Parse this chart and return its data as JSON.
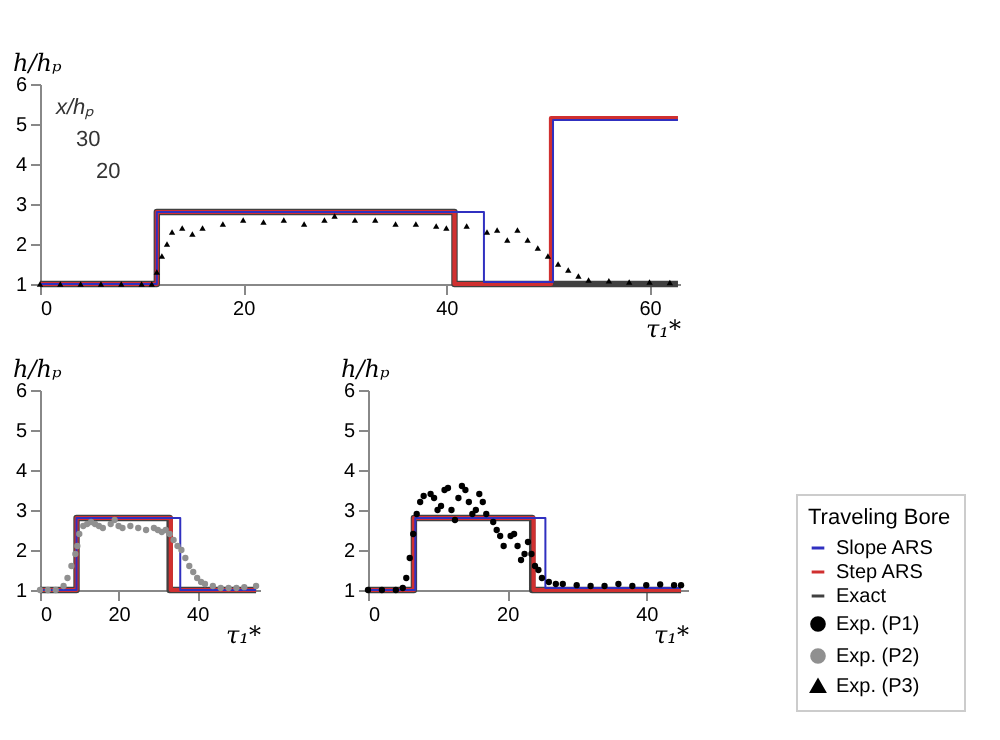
{
  "chart_data": [
    {
      "type": "line",
      "xlabel": "τ₁*",
      "ylabel": "h/hₚ",
      "xlim": [
        0,
        63
      ],
      "xticks": [
        0,
        20,
        40,
        60
      ],
      "ylim": [
        1,
        6
      ],
      "yticks": [
        1,
        2,
        3,
        4,
        5,
        6
      ],
      "grid": false,
      "legend": "right",
      "annotations": [
        "x/hₚ",
        "30",
        "20"
      ],
      "series": [
        {
          "name": "Slope ARS",
          "color": "#3030c0",
          "x": [
            0,
            11.5,
            11.5,
            43.7,
            43.7,
            50.5,
            50.5,
            62.8
          ],
          "values": [
            1,
            1,
            2.8,
            2.8,
            1.05,
            1.05,
            5.1,
            5.1
          ]
        },
        {
          "name": "Step ARS",
          "color": "#d03030",
          "x": [
            0,
            11.5,
            11.5,
            40.8,
            40.8,
            50.3,
            50.3,
            62.8
          ],
          "values": [
            1,
            1,
            2.8,
            2.8,
            1,
            1,
            5.15,
            5.15
          ]
        },
        {
          "name": "Exact",
          "color": "#404040",
          "x": [
            0,
            11.5,
            11.5,
            40.8,
            40.8,
            62.8
          ],
          "values": [
            1,
            1,
            2.8,
            2.8,
            1,
            1
          ]
        },
        {
          "name": "Exp. (P3)",
          "type": "scatter",
          "marker": "triangle",
          "color": "#000000",
          "x": [
            0,
            2,
            4,
            6,
            8,
            10,
            11,
            11.5,
            12,
            12.5,
            13,
            14,
            15,
            16,
            18,
            20,
            22,
            24,
            26,
            28,
            29,
            31,
            33,
            35,
            37,
            39,
            40,
            42,
            44,
            45,
            46,
            47,
            48,
            49,
            50,
            51,
            52,
            53,
            54,
            56,
            58,
            60,
            62
          ],
          "values": [
            1,
            1,
            1,
            1,
            1,
            1,
            1,
            1.3,
            1.7,
            2.0,
            2.3,
            2.4,
            2.25,
            2.4,
            2.5,
            2.6,
            2.55,
            2.6,
            2.5,
            2.6,
            2.7,
            2.6,
            2.6,
            2.5,
            2.5,
            2.45,
            2.4,
            2.45,
            2.3,
            2.35,
            2.1,
            2.35,
            2.1,
            1.9,
            1.7,
            1.5,
            1.35,
            1.2,
            1.1,
            1.08,
            1.05,
            1.05,
            1.04
          ]
        }
      ]
    },
    {
      "type": "line",
      "xlabel": "τ₁*",
      "ylabel": "h/hₚ",
      "xlim": [
        0,
        56
      ],
      "xticks": [
        0,
        20,
        40
      ],
      "ylim": [
        1,
        6
      ],
      "yticks": [
        1,
        2,
        3,
        4,
        5,
        6
      ],
      "grid": false,
      "legend": "right",
      "series": [
        {
          "name": "Slope ARS",
          "color": "#3030c0",
          "x": [
            0,
            9.3,
            9.3,
            35.7,
            35.7,
            55
          ],
          "values": [
            1,
            1,
            2.8,
            2.8,
            1,
            1
          ]
        },
        {
          "name": "Step ARS",
          "color": "#d03030",
          "x": [
            0,
            9.3,
            9.3,
            33.3,
            33.3,
            55
          ],
          "values": [
            1,
            1,
            2.8,
            2.8,
            1,
            1
          ]
        },
        {
          "name": "Exact",
          "color": "#404040",
          "x": [
            0,
            9.3,
            9.3,
            33.0,
            33.0,
            55
          ],
          "values": [
            1,
            1,
            2.8,
            2.8,
            1,
            1
          ]
        },
        {
          "name": "Exp. (P2)",
          "type": "scatter",
          "marker": "circle",
          "color": "#909090",
          "x": [
            0,
            2,
            4,
            6,
            7,
            8,
            9,
            9.5,
            10,
            11,
            12,
            13,
            14,
            15,
            16,
            18,
            19,
            20,
            21,
            23,
            25,
            27,
            29,
            30,
            31,
            32,
            33,
            34,
            35,
            36,
            37,
            38,
            39,
            40,
            41,
            42,
            44,
            46,
            48,
            50,
            52,
            55
          ],
          "values": [
            1,
            1,
            1,
            1.1,
            1.3,
            1.6,
            1.9,
            2.1,
            2.4,
            2.6,
            2.65,
            2.7,
            2.65,
            2.6,
            2.55,
            2.65,
            2.75,
            2.6,
            2.55,
            2.6,
            2.55,
            2.5,
            2.55,
            2.5,
            2.45,
            2.5,
            2.4,
            2.25,
            2.1,
            2.0,
            1.8,
            1.6,
            1.45,
            1.3,
            1.2,
            1.15,
            1.1,
            1.05,
            1.05,
            1.05,
            1.07,
            1.1
          ]
        }
      ]
    },
    {
      "type": "line",
      "xlabel": "τ₁*",
      "ylabel": "h/hₚ",
      "xlim": [
        0,
        46
      ],
      "xticks": [
        0,
        20,
        40
      ],
      "ylim": [
        1,
        6
      ],
      "yticks": [
        1,
        2,
        3,
        4,
        5,
        6
      ],
      "grid": false,
      "legend": "right",
      "legend_title": "Traveling Bore",
      "series": [
        {
          "name": "Slope ARS",
          "color": "#3030c0",
          "x": [
            0,
            6.8,
            6.8,
            25.5,
            25.5,
            45
          ],
          "values": [
            1,
            1,
            2.8,
            2.8,
            1.05,
            1.05
          ]
        },
        {
          "name": "Step ARS",
          "color": "#d03030",
          "x": [
            0,
            6.6,
            6.6,
            23.8,
            23.8,
            45
          ],
          "values": [
            1,
            1,
            2.8,
            2.8,
            1,
            1
          ]
        },
        {
          "name": "Exact",
          "color": "#404040",
          "x": [
            0,
            6.6,
            6.6,
            23.6,
            23.6,
            45
          ],
          "values": [
            1,
            1,
            2.8,
            2.8,
            1,
            1
          ]
        },
        {
          "name": "Exp. (P1)",
          "type": "scatter",
          "marker": "circle",
          "color": "#000000",
          "x": [
            0,
            2,
            4,
            5,
            5.5,
            6,
            6.5,
            7,
            7.5,
            8,
            9,
            9.5,
            10,
            10.5,
            11,
            11.5,
            12,
            12.5,
            13,
            13.5,
            14,
            14.5,
            15,
            15.5,
            16,
            16.5,
            17,
            18,
            18.5,
            19,
            19.5,
            20.5,
            21,
            21.5,
            22,
            22.5,
            23,
            23.5,
            24,
            24.5,
            25,
            26,
            27,
            28,
            30,
            32,
            34,
            36,
            38,
            40,
            42,
            44,
            45
          ],
          "values": [
            1,
            1,
            1,
            1.05,
            1.3,
            1.8,
            2.4,
            2.9,
            3.2,
            3.35,
            3.4,
            3.3,
            3.0,
            3.1,
            3.5,
            3.55,
            3.0,
            2.75,
            3.3,
            3.6,
            3.5,
            3.2,
            2.9,
            3.0,
            3.4,
            3.2,
            2.9,
            2.7,
            2.5,
            2.35,
            2.1,
            2.35,
            2.4,
            2.1,
            1.75,
            1.9,
            2.2,
            1.9,
            1.6,
            1.5,
            1.3,
            1.2,
            1.15,
            1.15,
            1.12,
            1.1,
            1.1,
            1.15,
            1.1,
            1.12,
            1.14,
            1.12,
            1.12
          ]
        }
      ]
    }
  ]
}
